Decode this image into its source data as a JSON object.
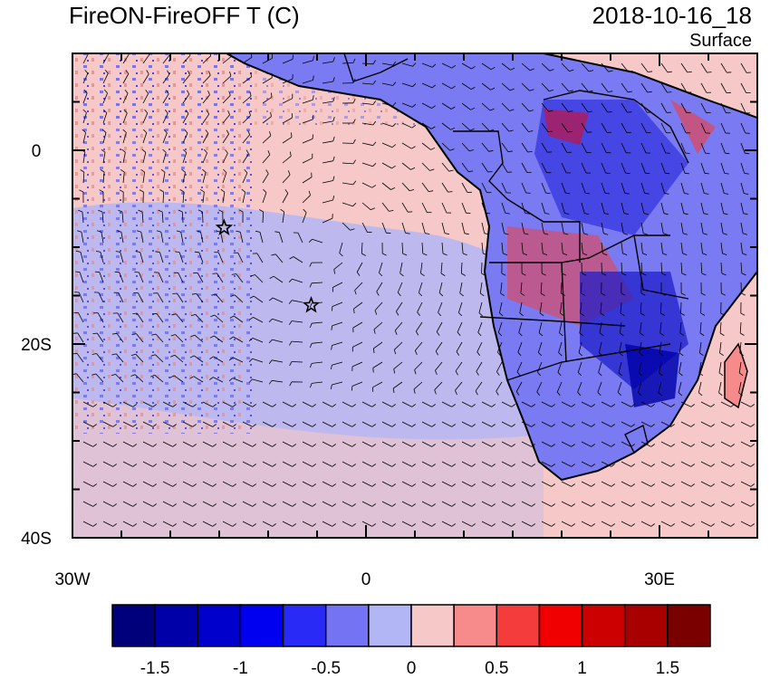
{
  "header": {
    "title": "FireON-FireOFF T (C)",
    "datetime": "2018-10-16_18",
    "level": "Surface"
  },
  "map": {
    "lon_range": [
      -30,
      40
    ],
    "lat_range": [
      -40,
      10
    ],
    "x_ticks": [
      {
        "lon": -30,
        "label": "30W"
      },
      {
        "lon": 0,
        "label": "0"
      },
      {
        "lon": 30,
        "label": "30E"
      }
    ],
    "y_ticks": [
      {
        "lat": 0,
        "label": "0"
      },
      {
        "lat": -20,
        "label": "20S"
      },
      {
        "lat": -40,
        "label": "40S"
      }
    ],
    "markers": [
      {
        "name": "star-marker-north",
        "lon": -14.5,
        "lat": -8.0
      },
      {
        "name": "star-marker-south",
        "lon": -5.6,
        "lat": -16.0
      }
    ]
  },
  "colorbar": {
    "colors": [
      "#00007a",
      "#0000a8",
      "#0000cc",
      "#0000f0",
      "#2a2af6",
      "#7373f4",
      "#b3b6f5",
      "#f7c8c8",
      "#f78a8a",
      "#f43c3c",
      "#f00000",
      "#cc0000",
      "#a80000",
      "#7a0000"
    ],
    "labels": [
      "-1.5",
      "-1",
      "-0.5",
      "0",
      "0.5",
      "1",
      "1.5"
    ],
    "label_values": [
      -1.5,
      -1,
      -0.5,
      0,
      0.5,
      1,
      1.5
    ]
  }
}
